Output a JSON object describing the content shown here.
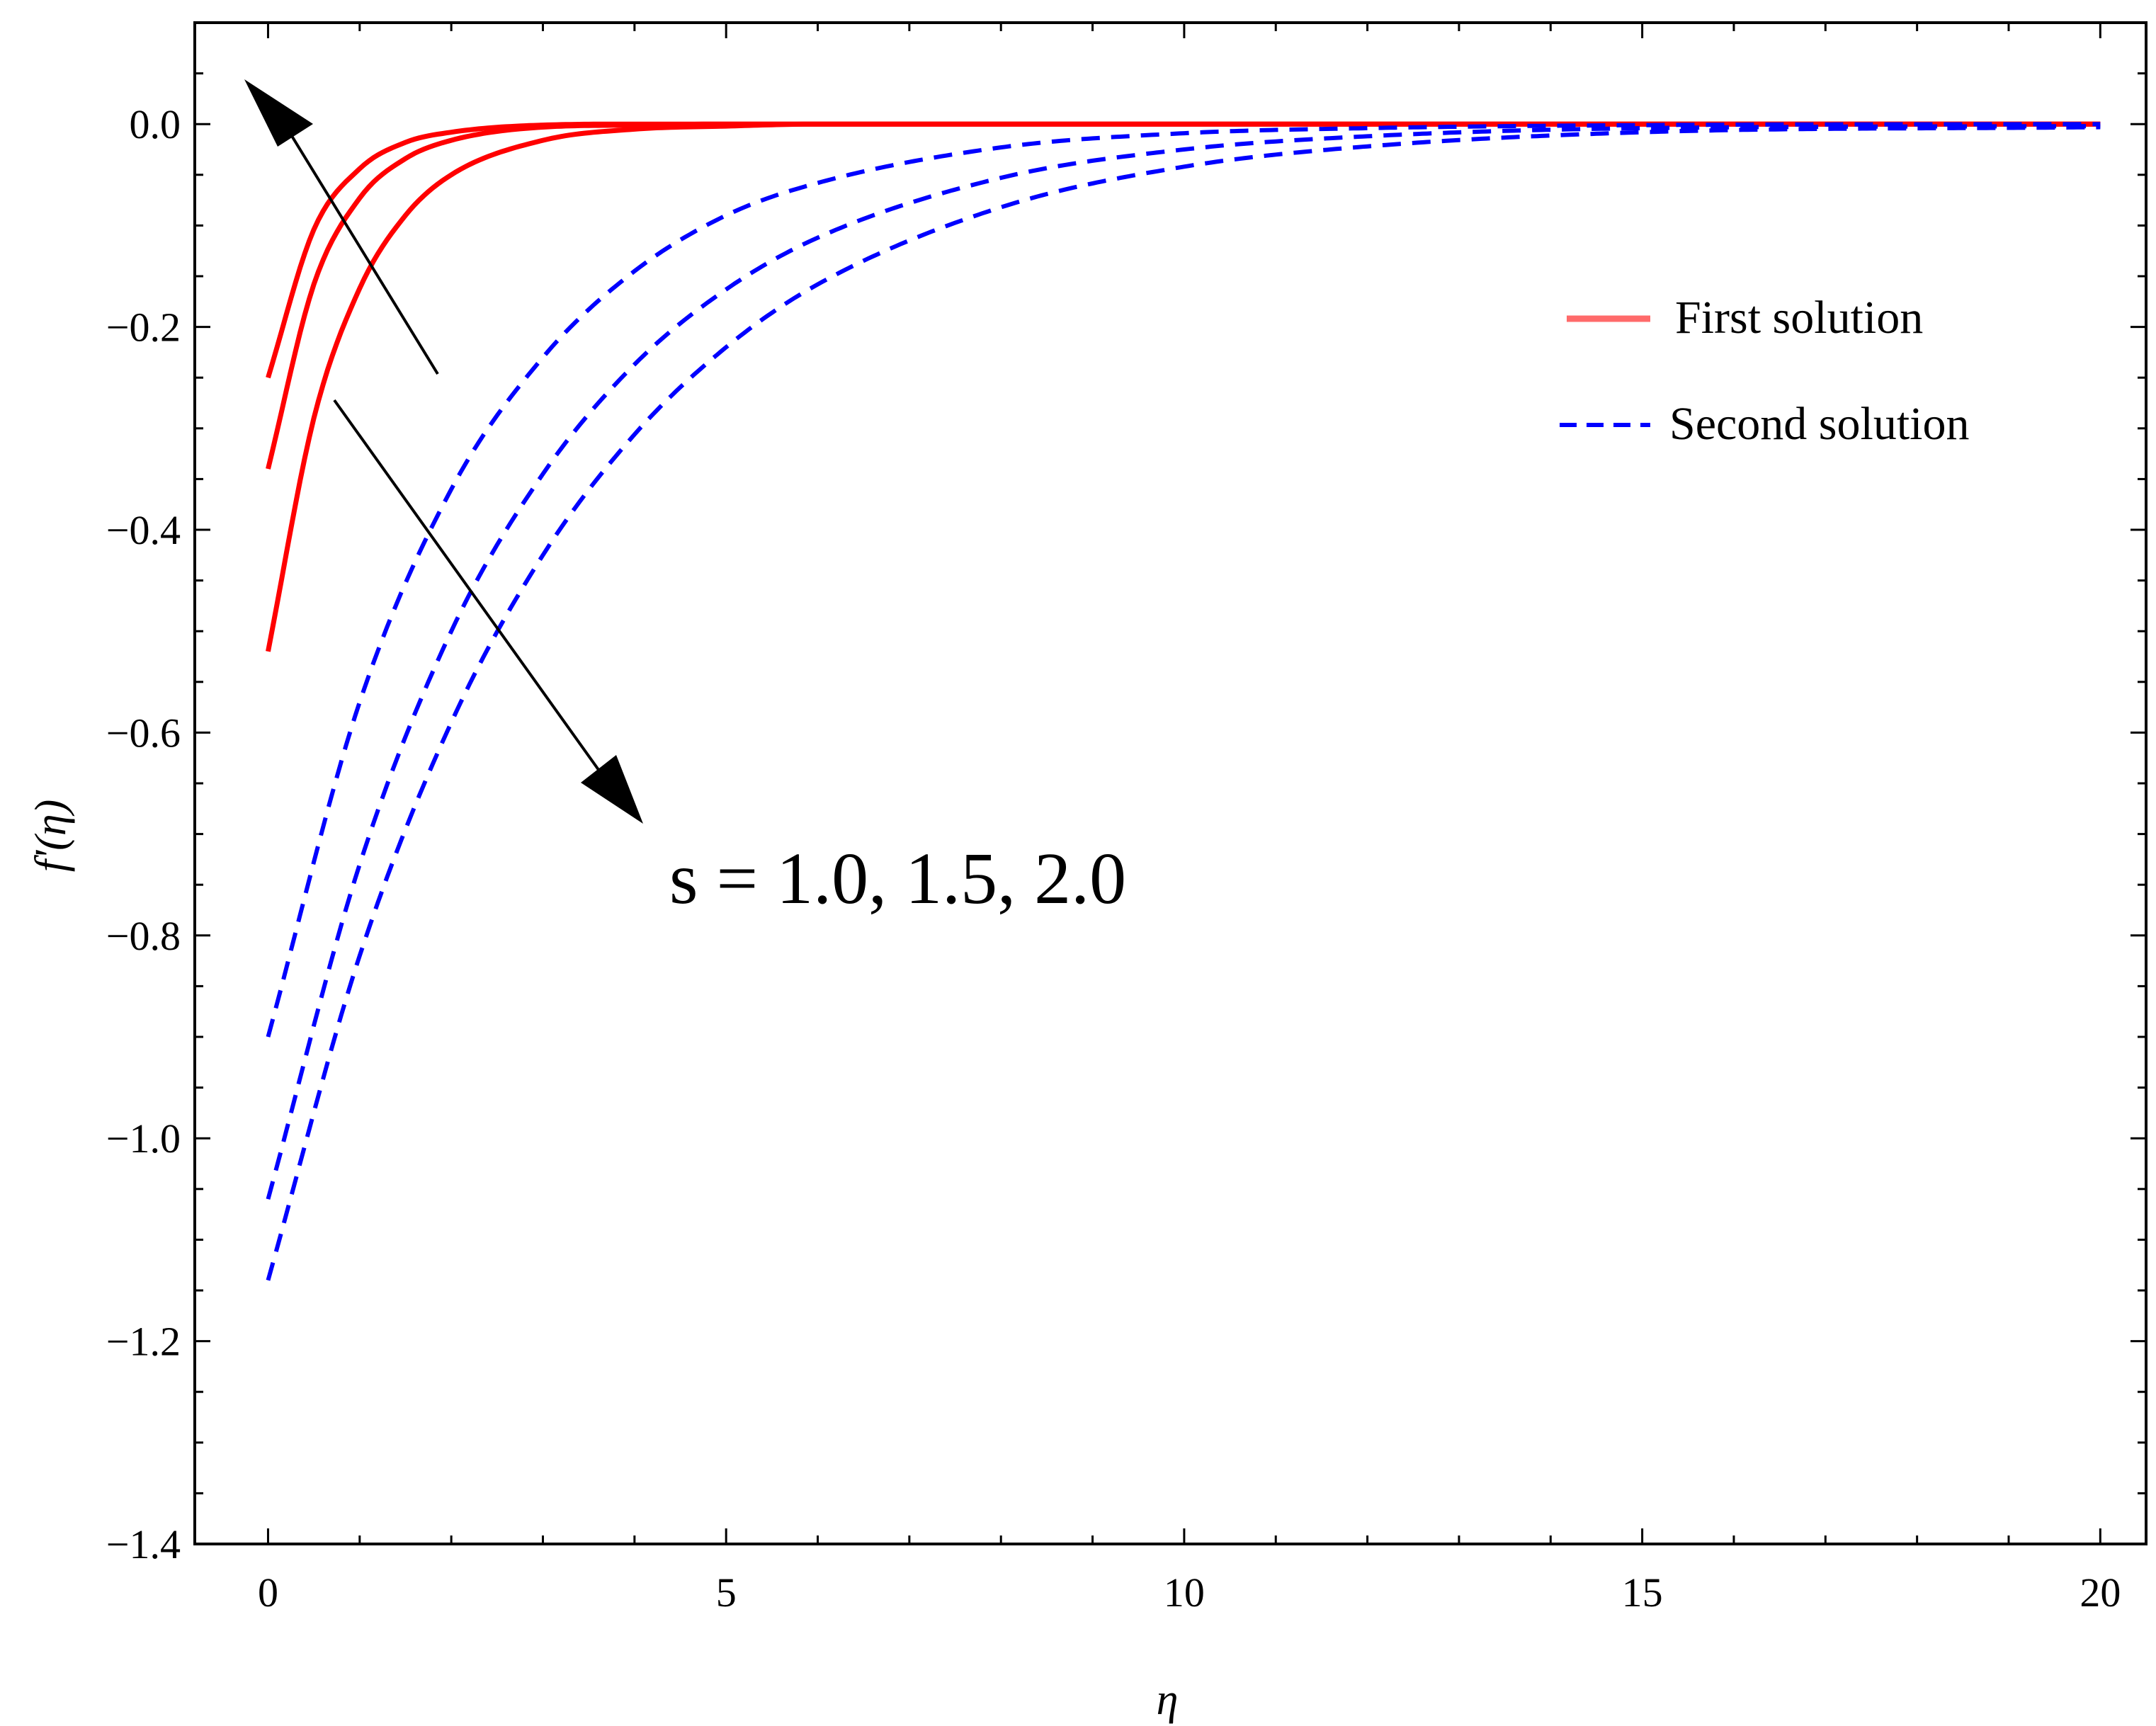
{
  "chart_data": {
    "type": "line",
    "title": "",
    "xlabel": "η",
    "ylabel": "f'(η)",
    "xlim": [
      -0.8,
      20.5
    ],
    "ylim": [
      -1.4,
      0.1
    ],
    "grid": false,
    "x_ticks": [
      0,
      5,
      10,
      15,
      20
    ],
    "x_tick_labels": [
      "0",
      "5",
      "10",
      "15",
      "20"
    ],
    "y_ticks": [
      0.0,
      -0.2,
      -0.4,
      -0.6,
      -0.8,
      -1.0,
      -1.2,
      -1.4
    ],
    "y_tick_labels": [
      "0.0",
      "−0.2",
      "−0.4",
      "−0.6",
      "−0.8",
      "−1.0",
      "−1.2",
      "−1.4"
    ],
    "legend": {
      "position": "right",
      "entries": [
        {
          "label": "First solution",
          "style": "solid",
          "color": "#ff0000"
        },
        {
          "label": "Second solution",
          "style": "dashed",
          "color": "#0000ff"
        }
      ]
    },
    "annotation": "s = 1.0, 1.5, 2.0",
    "series": [
      {
        "group": "First solution",
        "color": "#ff0000",
        "style": "solid",
        "x": [
          0,
          0.5,
          1,
          1.5,
          2,
          3,
          4,
          5,
          8,
          12,
          20
        ],
        "y": [
          -0.25,
          -0.104,
          -0.044,
          -0.018,
          -0.008,
          -0.001,
          0.0,
          0.0,
          0.0,
          0.0,
          0.0
        ]
      },
      {
        "group": "First solution",
        "color": "#ff0000",
        "style": "solid",
        "x": [
          0,
          0.5,
          1,
          1.5,
          2,
          3,
          4,
          5,
          8,
          12,
          20
        ],
        "y": [
          -0.34,
          -0.158,
          -0.073,
          -0.034,
          -0.016,
          -0.003,
          -0.001,
          0.0,
          0.0,
          0.0,
          0.0
        ]
      },
      {
        "group": "First solution",
        "color": "#ff0000",
        "style": "solid",
        "x": [
          0,
          0.5,
          1,
          1.5,
          2,
          3,
          4,
          5,
          6,
          8,
          12,
          20
        ],
        "y": [
          -0.52,
          -0.29,
          -0.162,
          -0.09,
          -0.05,
          -0.016,
          -0.005,
          -0.002,
          0.0,
          0.0,
          0.0,
          0.0
        ]
      },
      {
        "group": "Second solution",
        "color": "#0000ff",
        "style": "dashed",
        "x": [
          0,
          1,
          2,
          3,
          4,
          5,
          6,
          8,
          10,
          12,
          15,
          20
        ],
        "y": [
          -0.9,
          -0.57,
          -0.36,
          -0.23,
          -0.145,
          -0.09,
          -0.058,
          -0.023,
          -0.009,
          -0.004,
          -0.001,
          0.0
        ]
      },
      {
        "group": "Second solution",
        "color": "#0000ff",
        "style": "dashed",
        "x": [
          0,
          1,
          2,
          3,
          4,
          5,
          6,
          8,
          10,
          12,
          15,
          20
        ],
        "y": [
          -1.06,
          -0.73,
          -0.5,
          -0.345,
          -0.237,
          -0.163,
          -0.112,
          -0.053,
          -0.025,
          -0.012,
          -0.004,
          -0.002
        ]
      },
      {
        "group": "Second solution",
        "color": "#0000ff",
        "style": "dashed",
        "x": [
          0,
          1,
          2,
          3,
          4,
          5,
          6,
          8,
          10,
          12,
          15,
          20
        ],
        "y": [
          -1.14,
          -0.82,
          -0.59,
          -0.425,
          -0.306,
          -0.22,
          -0.158,
          -0.082,
          -0.042,
          -0.022,
          -0.008,
          -0.003
        ]
      }
    ]
  }
}
